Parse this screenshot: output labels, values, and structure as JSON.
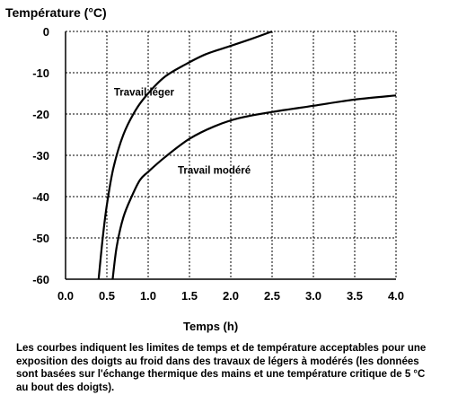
{
  "chart_data": {
    "type": "line",
    "ylabel": "Température (°C)",
    "xlabel": "Temps (h)",
    "xlim": [
      0,
      4
    ],
    "ylim": [
      -60,
      0
    ],
    "xticks": [
      "0.0",
      "0.5",
      "1.0",
      "1.5",
      "2.0",
      "2.5",
      "3.0",
      "3.5",
      "4.0"
    ],
    "yticks": [
      "0",
      "-10",
      "-20",
      "-30",
      "-40",
      "-50",
      "-60"
    ],
    "grid": true,
    "series": [
      {
        "name": "Travail léger",
        "x": [
          0.4,
          0.45,
          0.5,
          0.58,
          0.7,
          0.85,
          1.0,
          1.2,
          1.45,
          1.7,
          2.0,
          2.25,
          2.5
        ],
        "y": [
          -60,
          -50,
          -42,
          -33,
          -25,
          -19,
          -15,
          -11,
          -8,
          -5.5,
          -3.5,
          -1.8,
          0
        ]
      },
      {
        "name": "Travail modéré",
        "x": [
          0.57,
          0.62,
          0.7,
          0.8,
          0.9,
          1.0,
          1.2,
          1.5,
          1.8,
          2.1,
          2.5,
          3.0,
          3.5,
          4.0
        ],
        "y": [
          -60,
          -52,
          -45,
          -40,
          -36,
          -34,
          -30.5,
          -26,
          -23,
          -21,
          -19.5,
          -18,
          -16.5,
          -15.5
        ]
      }
    ]
  },
  "caption": "Les courbes indiquent les limites de temps et de température acceptables pour une exposition des doigts au froid dans des travaux de légers à modérés (les données sont basées sur l'échange thermique des mains et une température critique de 5 °C au bout des doigts)."
}
